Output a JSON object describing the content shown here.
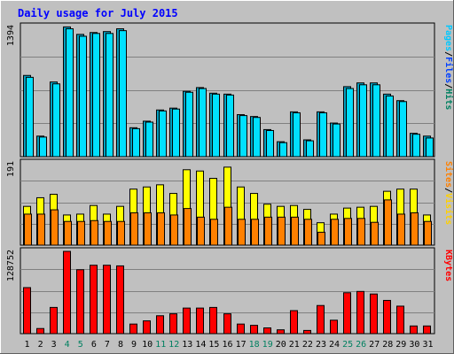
{
  "chart_data": {
    "type": "bar",
    "title": "Daily usage for July 2015",
    "categories": [
      "1",
      "2",
      "3",
      "4",
      "5",
      "6",
      "7",
      "8",
      "9",
      "10",
      "11",
      "12",
      "13",
      "14",
      "15",
      "16",
      "17",
      "18",
      "19",
      "20",
      "21",
      "22",
      "23",
      "24",
      "25",
      "26",
      "27",
      "28",
      "29",
      "30",
      "31"
    ],
    "weekend_days": [
      "4",
      "5",
      "11",
      "12",
      "18",
      "19",
      "25",
      "26"
    ],
    "panels": [
      {
        "id": "hits_files",
        "max_label": "1394",
        "ylim": [
          0,
          1394
        ],
        "label_parts": [
          "Pages",
          "/",
          "Files",
          "/",
          "Hits"
        ],
        "label_colors": [
          "#00c8ff",
          "#000000",
          "#0040ff",
          "#000000",
          "#008060"
        ],
        "series": [
          {
            "color": "#00a0c0",
            "values": [
              870,
              220,
              800,
              1390,
              1310,
              1330,
              1340,
              1370,
              310,
              380,
              500,
              520,
              700,
              740,
              680,
              670,
              450,
              430,
              290,
              160,
              480,
              180,
              480,
              360,
              750,
              790,
              790,
              670,
              600,
              250,
              220
            ]
          },
          {
            "color": "#00e0ff",
            "values": [
              850,
              210,
              780,
              1370,
              1290,
              1320,
              1320,
              1350,
              300,
              370,
              490,
              510,
              690,
              730,
              670,
              660,
              440,
              420,
              280,
              150,
              470,
              170,
              470,
              350,
              730,
              770,
              770,
              650,
              590,
              240,
              200
            ]
          }
        ]
      },
      {
        "id": "visits_sites",
        "max_label": "191",
        "ylim": [
          0,
          191
        ],
        "label_parts": [
          "Sites",
          "/",
          "Visits"
        ],
        "label_colors": [
          "#ff8000",
          "#000000",
          "#ffd000"
        ],
        "series": [
          {
            "color": "#ffff00",
            "values": [
              90,
              110,
              118,
              70,
              72,
              92,
              72,
              90,
              130,
              135,
              140,
              120,
              175,
              172,
              155,
              181,
              135,
              120,
              95,
              90,
              92,
              83,
              52,
              72,
              86,
              88,
              90,
              125,
              130,
              130,
              70
            ]
          },
          {
            "color": "#ff8000",
            "values": [
              72,
              72,
              82,
              55,
              55,
              57,
              55,
              55,
              75,
              75,
              75,
              70,
              85,
              65,
              60,
              88,
              60,
              60,
              65,
              65,
              65,
              60,
              30,
              60,
              62,
              62,
              53,
              105,
              72,
              75,
              55
            ]
          }
        ]
      },
      {
        "id": "kbytes",
        "max_label": "128752",
        "ylim": [
          0,
          128752
        ],
        "label_parts": [
          "KBytes"
        ],
        "label_colors": [
          "#ff0000"
        ],
        "series": [
          {
            "color": "#ff0000",
            "values": [
              72000,
              8000,
              41000,
              128700,
              100000,
              107000,
              107000,
              106000,
              15000,
              20000,
              28000,
              31000,
              40000,
              40000,
              41000,
              31000,
              15000,
              13000,
              9000,
              6000,
              36000,
              5000,
              44000,
              21000,
              64000,
              66000,
              62000,
              52000,
              43000,
              12000,
              12000
            ]
          }
        ]
      }
    ],
    "colors": {
      "background": "#c0c0c0",
      "panel": "#c0c0c0",
      "title": "#0000ff",
      "weekday_label": "#000000",
      "weekend_label": "#008060"
    }
  }
}
